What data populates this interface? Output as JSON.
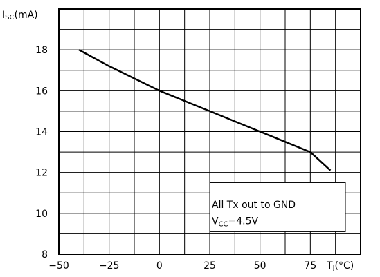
{
  "chart_data": {
    "type": "line",
    "ylabel": {
      "main": "I",
      "sub": "SC",
      "unit": "(mA)"
    },
    "xlabel": {
      "main": "T",
      "sub": "J",
      "unit": "(°C)"
    },
    "xlim": [
      -50,
      100
    ],
    "ylim": [
      8,
      20
    ],
    "x_ticks": [
      -50,
      -25,
      0,
      25,
      50,
      75
    ],
    "y_ticks": [
      8,
      10,
      12,
      14,
      16,
      18
    ],
    "grid": true,
    "series": [
      {
        "x": [
          -40,
          -25,
          0,
          25,
          50,
          75,
          85
        ],
        "y": [
          18,
          17.2,
          16,
          15,
          14,
          13,
          12.1
        ]
      }
    ],
    "annotation": {
      "line1": "All Tx out to GND",
      "line2_prefix": "V",
      "line2_sub": "CC",
      "line2_suffix": "=4.5V"
    },
    "colors": {
      "line": "#000000",
      "grid": "#000000",
      "background": "#ffffff"
    }
  }
}
